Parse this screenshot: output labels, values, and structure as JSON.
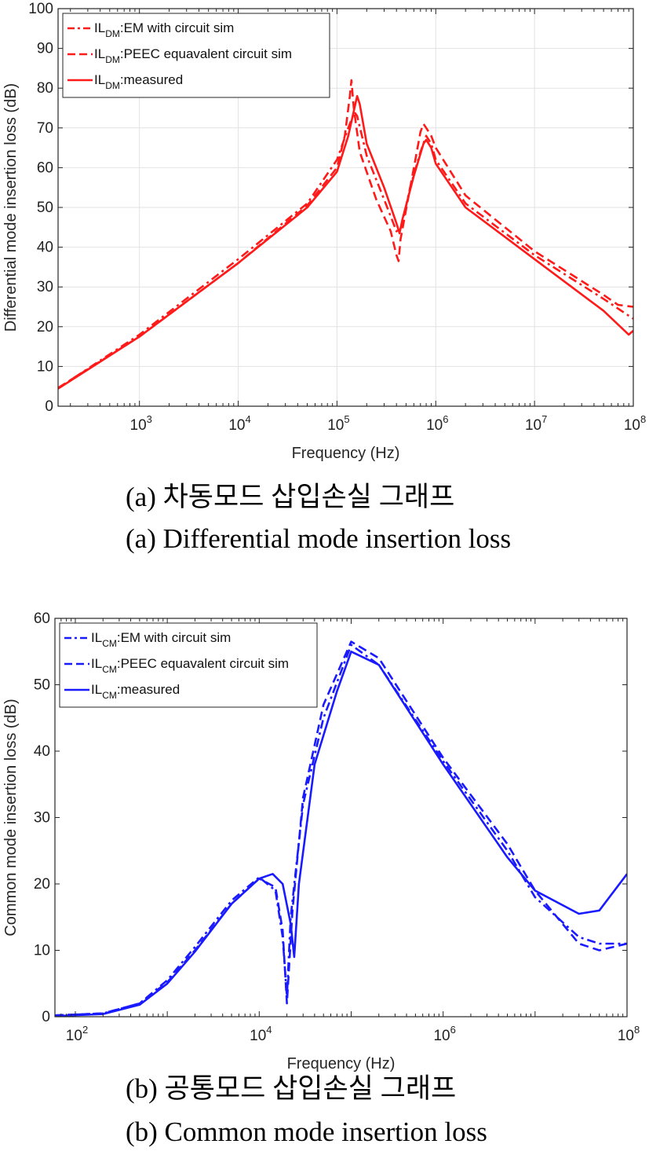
{
  "chart_data": [
    {
      "type": "line",
      "ylabel": "Differential mode insertion loss (dB)",
      "xlabel": "Frequency (Hz)",
      "x_scale": "log",
      "xlim": [
        150,
        100000000
      ],
      "ylim": [
        0,
        100
      ],
      "yticks": [
        "0",
        "10",
        "20",
        "30",
        "40",
        "50",
        "60",
        "70",
        "80",
        "90",
        "100"
      ],
      "xticks": [
        {
          "v": 1000,
          "b": "10",
          "e": "3"
        },
        {
          "v": 10000,
          "b": "10",
          "e": "4"
        },
        {
          "v": 100000,
          "b": "10",
          "e": "5"
        },
        {
          "v": 1000000,
          "b": "10",
          "e": "6"
        },
        {
          "v": 10000000,
          "b": "10",
          "e": "7"
        },
        {
          "v": 100000000,
          "b": "10",
          "e": "8"
        }
      ],
      "grid": true,
      "legend": "top-left",
      "color": "#ff1a1a",
      "legend_entries": [
        {
          "pre": "IL",
          "sub": "DM",
          "post": ":EM with circuit sim",
          "style": "dashdot"
        },
        {
          "pre": "IL",
          "sub": "DM",
          "post": ":PEEC equavalent circuit sim",
          "style": "dashed"
        },
        {
          "pre": "IL",
          "sub": "DM",
          "post": ":measured",
          "style": "solid"
        }
      ],
      "series": [
        {
          "style": "dashdot",
          "points": [
            [
              150,
              4.5
            ],
            [
              1000,
              18
            ],
            [
              10000,
              37
            ],
            [
              50000,
              51
            ],
            [
              100000,
              62
            ],
            [
              130000,
              70
            ],
            [
              150000,
              74
            ],
            [
              160000,
              73
            ],
            [
              200000,
              63
            ],
            [
              300000,
              52
            ],
            [
              400000,
              44
            ],
            [
              450000,
              45
            ],
            [
              550000,
              55
            ],
            [
              700000,
              64
            ],
            [
              800000,
              68
            ],
            [
              900000,
              66
            ],
            [
              1000000,
              62
            ],
            [
              2000000,
              51
            ],
            [
              10000000,
              38
            ],
            [
              50000000,
              27
            ],
            [
              100000000,
              22
            ]
          ]
        },
        {
          "style": "dashed",
          "points": [
            [
              150,
              4.6
            ],
            [
              1000,
              17.5
            ],
            [
              10000,
              36
            ],
            [
              50000,
              50.5
            ],
            [
              100000,
              60
            ],
            [
              120000,
              68
            ],
            [
              135000,
              78
            ],
            [
              140000,
              82
            ],
            [
              148000,
              75
            ],
            [
              170000,
              64
            ],
            [
              250000,
              52
            ],
            [
              350000,
              44
            ],
            [
              400000,
              38
            ],
            [
              420000,
              36.5
            ],
            [
              440000,
              42
            ],
            [
              600000,
              60
            ],
            [
              700000,
              69
            ],
            [
              750000,
              71
            ],
            [
              800000,
              70
            ],
            [
              900000,
              68
            ],
            [
              1000000,
              65
            ],
            [
              2000000,
              53
            ],
            [
              10000000,
              39
            ],
            [
              50000000,
              28
            ],
            [
              70000000,
              25.5
            ],
            [
              100000000,
              25
            ]
          ]
        },
        {
          "style": "solid",
          "points": [
            [
              150,
              4.4
            ],
            [
              1000,
              17.5
            ],
            [
              10000,
              36
            ],
            [
              50000,
              50
            ],
            [
              100000,
              59
            ],
            [
              130000,
              68
            ],
            [
              160000,
              78
            ],
            [
              170000,
              76
            ],
            [
              200000,
              66
            ],
            [
              300000,
              55
            ],
            [
              400000,
              46
            ],
            [
              430000,
              43.5
            ],
            [
              460000,
              47
            ],
            [
              600000,
              58
            ],
            [
              750000,
              66
            ],
            [
              800000,
              67
            ],
            [
              900000,
              65
            ],
            [
              1000000,
              61
            ],
            [
              2000000,
              50
            ],
            [
              10000000,
              37
            ],
            [
              50000000,
              24
            ],
            [
              90000000,
              18
            ],
            [
              100000000,
              19
            ]
          ]
        }
      ]
    },
    {
      "type": "line",
      "ylabel": "Common mode insertion loss (dB)",
      "xlabel": "Frequency (Hz)",
      "x_scale": "log",
      "xlim": [
        60,
        100000000
      ],
      "ylim": [
        0,
        60
      ],
      "yticks": [
        "0",
        "10",
        "20",
        "30",
        "40",
        "50",
        "60"
      ],
      "xticks": [
        {
          "v": 100,
          "b": "10",
          "e": "2"
        },
        {
          "v": 10000,
          "b": "10",
          "e": "4"
        },
        {
          "v": 1000000,
          "b": "10",
          "e": "6"
        },
        {
          "v": 100000000,
          "b": "10",
          "e": "8"
        }
      ],
      "grid": false,
      "legend": "top-left",
      "color": "#1a1aff",
      "legend_entries": [
        {
          "pre": "IL",
          "sub": "CM",
          "post": ":EM with circuit sim",
          "style": "dashdot"
        },
        {
          "pre": "IL",
          "sub": "CM",
          "post": ":PEEC equavalent circuit sim",
          "style": "dashed"
        },
        {
          "pre": "IL",
          "sub": "CM",
          "post": ":measured",
          "style": "solid"
        }
      ],
      "series": [
        {
          "style": "dashdot",
          "points": [
            [
              60,
              0.2
            ],
            [
              200,
              0.5
            ],
            [
              500,
              2
            ],
            [
              1000,
              5.5
            ],
            [
              2000,
              10.5
            ],
            [
              5000,
              17.5
            ],
            [
              10000,
              21
            ],
            [
              15000,
              19
            ],
            [
              18000,
              12
            ],
            [
              20000,
              3
            ],
            [
              22000,
              15
            ],
            [
              30000,
              32
            ],
            [
              50000,
              45
            ],
            [
              100000,
              56
            ],
            [
              200000,
              53
            ],
            [
              1000000,
              38.5
            ],
            [
              5000000,
              25
            ],
            [
              10000000,
              18
            ],
            [
              30000000,
              12
            ],
            [
              50000000,
              11
            ],
            [
              100000000,
              11
            ]
          ]
        },
        {
          "style": "dashed",
          "points": [
            [
              60,
              0.2
            ],
            [
              200,
              0.5
            ],
            [
              500,
              2
            ],
            [
              1000,
              5.2
            ],
            [
              2000,
              10
            ],
            [
              5000,
              17
            ],
            [
              10000,
              20.8
            ],
            [
              15000,
              19.5
            ],
            [
              18000,
              13
            ],
            [
              20000,
              2
            ],
            [
              23000,
              16
            ],
            [
              30000,
              33
            ],
            [
              50000,
              47
            ],
            [
              100000,
              56.5
            ],
            [
              200000,
              54
            ],
            [
              1000000,
              39
            ],
            [
              5000000,
              26
            ],
            [
              10000000,
              19
            ],
            [
              30000000,
              11
            ],
            [
              50000000,
              10
            ],
            [
              100000000,
              11
            ]
          ]
        },
        {
          "style": "solid",
          "points": [
            [
              60,
              0.1
            ],
            [
              200,
              0.4
            ],
            [
              500,
              1.8
            ],
            [
              1000,
              5
            ],
            [
              2000,
              9.8
            ],
            [
              5000,
              17
            ],
            [
              10000,
              20.8
            ],
            [
              14000,
              21.5
            ],
            [
              18000,
              20
            ],
            [
              22000,
              14
            ],
            [
              24000,
              9
            ],
            [
              27000,
              20
            ],
            [
              40000,
              38
            ],
            [
              70000,
              49
            ],
            [
              100000,
              55
            ],
            [
              200000,
              53
            ],
            [
              1000000,
              38
            ],
            [
              5000000,
              24
            ],
            [
              10000000,
              19
            ],
            [
              30000000,
              15.5
            ],
            [
              50000000,
              16
            ],
            [
              100000000,
              21.5
            ]
          ]
        }
      ]
    }
  ],
  "captions": {
    "a_ko": "(a) 차동모드 삽입손실 그래프",
    "a_en": "(a) Differential mode insertion loss",
    "b_ko": "(b) 공통모드 삽입손실 그래프",
    "b_en": "(b) Common mode insertion loss"
  }
}
